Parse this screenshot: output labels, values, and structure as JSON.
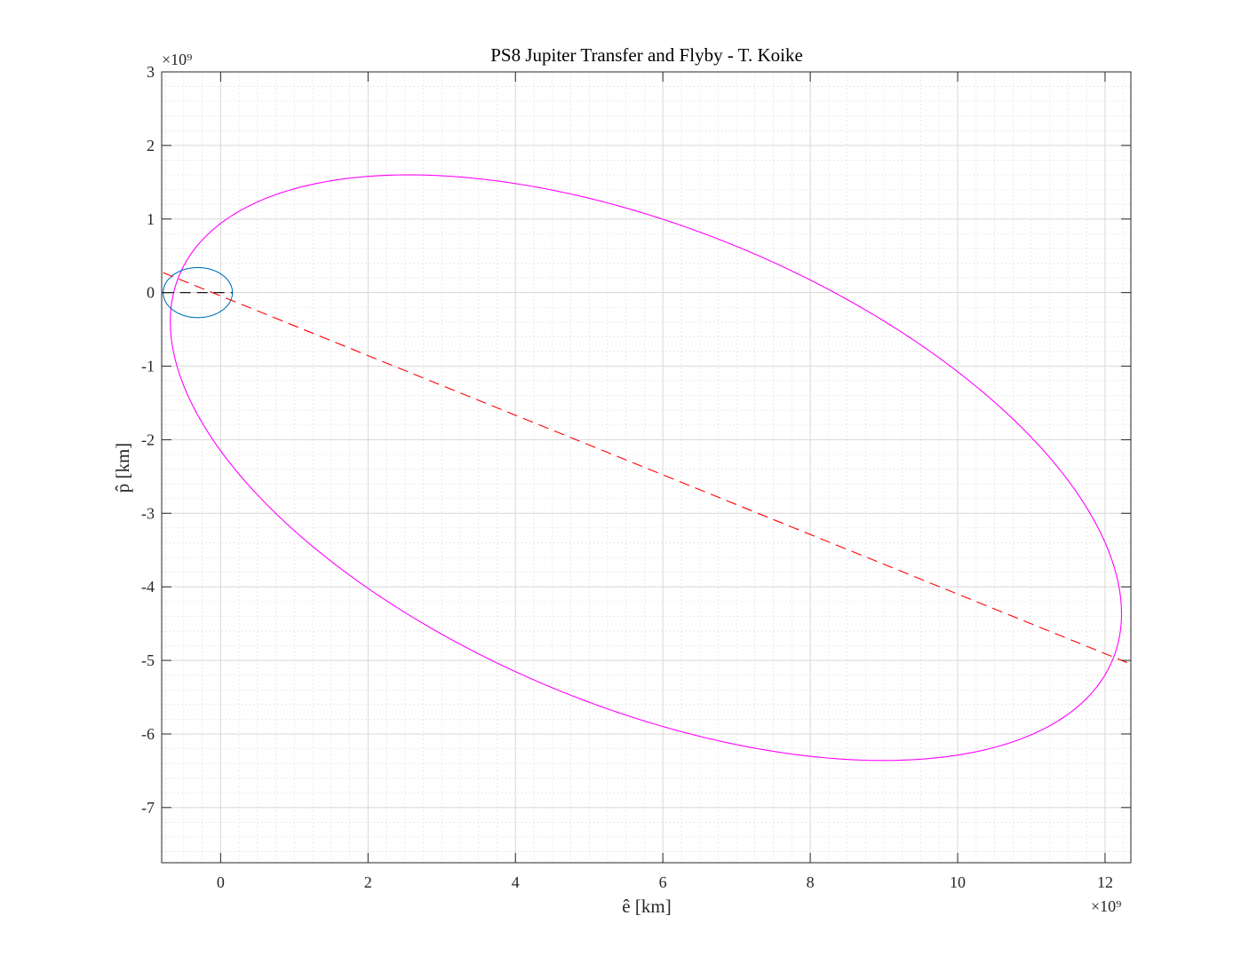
{
  "chart_data": {
    "type": "line",
    "title": "PS8 Jupiter Transfer and Flyby - T. Koike",
    "xlabel": "ê [km]",
    "ylabel": "p̂ [km]",
    "x_exponent_label": "×10⁹",
    "y_exponent_label": "×10⁹",
    "xlim": [
      -0.8,
      12.35
    ],
    "ylim": [
      -7.75,
      3
    ],
    "x_ticks": [
      0,
      2,
      4,
      6,
      8,
      10,
      12
    ],
    "y_ticks": [
      3,
      2,
      1,
      0,
      -1,
      -2,
      -3,
      -4,
      -5,
      -6,
      -7
    ],
    "x_tick_labels": [
      "0",
      "2",
      "4",
      "6",
      "8",
      "10",
      "12"
    ],
    "y_tick_labels": [
      "3",
      "2",
      "1",
      "0",
      "-1",
      "-2",
      "-3",
      "-4",
      "-5",
      "-6",
      "-7"
    ],
    "grid": true,
    "minor_grid": true,
    "unit_scale": 1000000000,
    "series": [
      {
        "kind": "ellipse",
        "color": "#FF00FF",
        "style": "solid",
        "center": [
          5.77,
          -2.38
        ],
        "semi_axes": [
          6.85,
          3.25
        ],
        "rotation_deg": -22.4
      },
      {
        "kind": "ellipse",
        "color": "#0072BD",
        "style": "solid",
        "center": [
          -0.31,
          0
        ],
        "semi_axes": [
          0.47,
          0.34
        ],
        "rotation_deg": 0
      },
      {
        "kind": "line",
        "color": "#FF0000",
        "style": "dashed",
        "x": [
          -0.78,
          12.3
        ],
        "y": [
          0.27,
          -5.03
        ]
      },
      {
        "kind": "line",
        "color": "#000000",
        "style": "dashed",
        "x": [
          -0.78,
          0.16
        ],
        "y": [
          0,
          0
        ]
      }
    ]
  }
}
